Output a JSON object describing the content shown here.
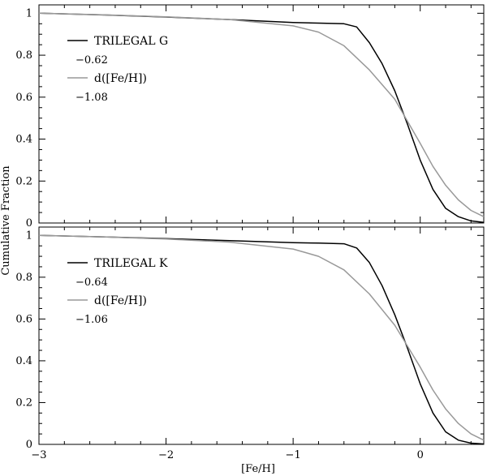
{
  "chart_data": [
    {
      "type": "line",
      "panel": "top",
      "title": "",
      "xlabel": "[Fe/H]",
      "ylabel": "Cumulative Fraction",
      "xlim": [
        -3,
        0.5
      ],
      "ylim": [
        0,
        1.04
      ],
      "yticks": [
        "0",
        "0.2",
        "0.4",
        "0.6",
        "0.8",
        "1"
      ],
      "grid": false,
      "legend_position": "upper-left",
      "series": [
        {
          "name": "TRILEGAL G",
          "value_label": "−0.62",
          "color": "#000000",
          "x": [
            -3.0,
            -2.5,
            -2.0,
            -1.5,
            -1.0,
            -0.8,
            -0.6,
            -0.5,
            -0.4,
            -0.3,
            -0.2,
            -0.1,
            0.0,
            0.1,
            0.2,
            0.3,
            0.4,
            0.5
          ],
          "y": [
            1.0,
            0.992,
            0.982,
            0.97,
            0.956,
            0.953,
            0.95,
            0.935,
            0.86,
            0.76,
            0.63,
            0.47,
            0.3,
            0.16,
            0.07,
            0.03,
            0.01,
            0.003
          ]
        },
        {
          "name": "d([Fe/H])",
          "value_label": "−1.08",
          "color": "#999999",
          "x": [
            -3.0,
            -2.5,
            -2.0,
            -1.5,
            -1.0,
            -0.8,
            -0.6,
            -0.4,
            -0.2,
            0.0,
            0.1,
            0.2,
            0.3,
            0.4,
            0.5
          ],
          "y": [
            1.0,
            0.993,
            0.983,
            0.97,
            0.94,
            0.91,
            0.845,
            0.73,
            0.59,
            0.38,
            0.27,
            0.18,
            0.11,
            0.06,
            0.03
          ]
        }
      ]
    },
    {
      "type": "line",
      "panel": "bottom",
      "title": "",
      "xlabel": "[Fe/H]",
      "ylabel": "Cumulative Fraction",
      "xlim": [
        -3,
        0.5
      ],
      "ylim": [
        0,
        1.04
      ],
      "xticks": [
        "−3",
        "−2",
        "−1",
        "0"
      ],
      "yticks": [
        "0",
        "0.2",
        "0.4",
        "0.6",
        "0.8",
        "1"
      ],
      "grid": false,
      "legend_position": "upper-left",
      "series": [
        {
          "name": "TRILEGAL K",
          "value_label": "−0.64",
          "color": "#000000",
          "x": [
            -3.0,
            -2.5,
            -2.0,
            -1.5,
            -1.0,
            -0.8,
            -0.6,
            -0.5,
            -0.4,
            -0.3,
            -0.2,
            -0.1,
            0.0,
            0.1,
            0.2,
            0.3,
            0.4,
            0.5
          ],
          "y": [
            1.0,
            0.993,
            0.985,
            0.975,
            0.965,
            0.963,
            0.96,
            0.94,
            0.87,
            0.76,
            0.62,
            0.46,
            0.29,
            0.15,
            0.06,
            0.02,
            0.006,
            0.002
          ]
        },
        {
          "name": "d([Fe/H])",
          "value_label": "−1.06",
          "color": "#999999",
          "x": [
            -3.0,
            -2.5,
            -2.0,
            -1.5,
            -1.0,
            -0.8,
            -0.6,
            -0.4,
            -0.2,
            0.0,
            0.1,
            0.2,
            0.3,
            0.4,
            0.5
          ],
          "y": [
            1.0,
            0.993,
            0.983,
            0.968,
            0.935,
            0.9,
            0.835,
            0.72,
            0.57,
            0.37,
            0.26,
            0.17,
            0.1,
            0.05,
            0.02
          ]
        }
      ]
    }
  ]
}
